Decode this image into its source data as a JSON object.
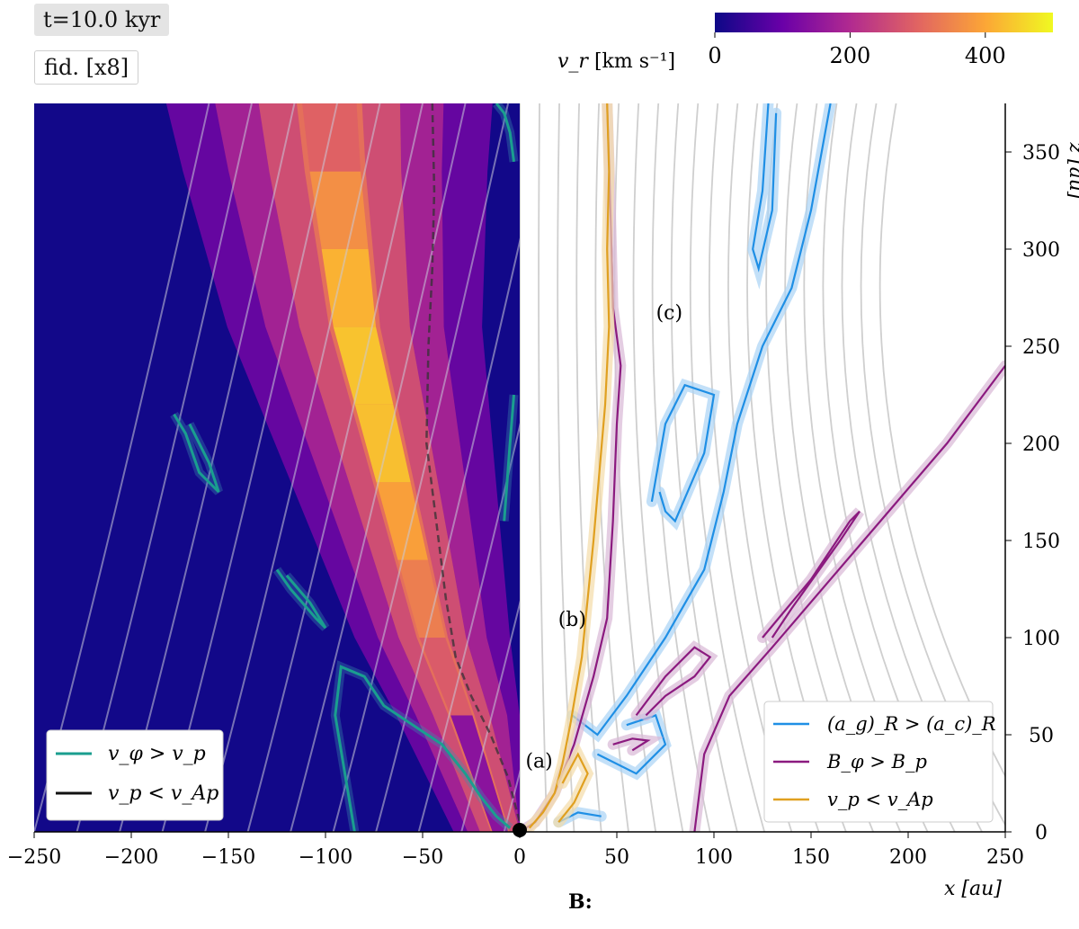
{
  "labels": {
    "time": "t=10.0 kyr",
    "run": "fid. [x8]",
    "field_caption": "B:"
  },
  "colorbar": {
    "quantity": "v_r",
    "unit": "[km s⁻¹]",
    "ticks": [
      0,
      200,
      400
    ],
    "range": [
      0,
      500
    ],
    "colormap": [
      "#0d0887",
      "#6a00a8",
      "#b12a90",
      "#e16462",
      "#fca636",
      "#f0f921"
    ]
  },
  "chart_data": {
    "type": "heatmap",
    "xlabel": "x [au]",
    "ylabel": "z [au]",
    "xlim": [
      -250,
      250
    ],
    "ylim": [
      0,
      375
    ],
    "xticks": [
      -250,
      -200,
      -150,
      -100,
      -50,
      0,
      50,
      100,
      150,
      200,
      250
    ],
    "yticks": [
      0,
      50,
      100,
      150,
      200,
      250,
      300,
      350
    ],
    "left_panel": {
      "field": "v_r",
      "background_value": 5,
      "outflow_band": [
        [
          -10,
          0,
          40
        ],
        [
          -30,
          60,
          250
        ],
        [
          -45,
          100,
          320
        ],
        [
          -55,
          140,
          360
        ],
        [
          -65,
          180,
          420
        ],
        [
          -75,
          220,
          440
        ],
        [
          -85,
          260,
          430
        ],
        [
          -90,
          300,
          400
        ],
        [
          -95,
          340,
          330
        ],
        [
          -98,
          375,
          260
        ]
      ],
      "legend": [
        {
          "label": "v_φ > v_p",
          "color": "#1a9e8f"
        },
        {
          "label": "v_p < v_Ap",
          "color": "#111111"
        }
      ],
      "contours": {
        "vphi_gt_vp": [
          [
            [
              -85,
              0
            ],
            [
              -90,
              30
            ],
            [
              -95,
              60
            ],
            [
              -92,
              85
            ],
            [
              -80,
              80
            ],
            [
              -70,
              65
            ],
            [
              -55,
              55
            ],
            [
              -40,
              45
            ],
            [
              -28,
              30
            ],
            [
              -20,
              18
            ],
            [
              -12,
              8
            ],
            [
              -5,
              2
            ]
          ],
          [
            [
              -178,
              215
            ],
            [
              -172,
              205
            ],
            [
              -165,
              185
            ],
            [
              -155,
              175
            ],
            [
              -160,
              190
            ],
            [
              -170,
              210
            ]
          ],
          [
            [
              -125,
              135
            ],
            [
              -118,
              125
            ],
            [
              -105,
              110
            ],
            [
              -100,
              105
            ],
            [
              -108,
              118
            ],
            [
              -120,
              132
            ]
          ],
          [
            [
              -12,
              375
            ],
            [
              -8,
              370
            ],
            [
              -5,
              360
            ],
            [
              -3,
              345
            ]
          ],
          [
            [
              -8,
              160
            ],
            [
              -5,
              200
            ],
            [
              -3,
              225
            ]
          ]
        ],
        "vp_lt_vap": [
          [
            [
              -45,
              375
            ],
            [
              -44,
              330
            ],
            [
              -45,
              290
            ],
            [
              -47,
              250
            ],
            [
              -48,
              200
            ],
            [
              -43,
              160
            ],
            [
              -38,
              120
            ],
            [
              -33,
              90
            ],
            [
              -25,
              70
            ],
            [
              -15,
              50
            ],
            [
              -6,
              28
            ],
            [
              0,
              5
            ]
          ]
        ]
      }
    },
    "right_panel": {
      "field": "B",
      "annotations": [
        {
          "text": "(a)",
          "x": 10,
          "z": 33
        },
        {
          "text": "(b)",
          "x": 27,
          "z": 106
        },
        {
          "text": "(c)",
          "x": 77,
          "z": 264
        }
      ],
      "legend": [
        {
          "label": "(a_g)_R > (a_c)_R",
          "color": "#1f8fe5"
        },
        {
          "label": "B_φ > B_p",
          "color": "#8b1a7f"
        },
        {
          "label": "v_p < v_Ap",
          "color": "#e0a020"
        }
      ],
      "contours": {
        "ag_gt_ac": [
          [
            [
              27,
              60
            ],
            [
              40,
              50
            ],
            [
              55,
              70
            ],
            [
              75,
              100
            ],
            [
              95,
              135
            ],
            [
              105,
              175
            ],
            [
              112,
              210
            ],
            [
              125,
              250
            ],
            [
              140,
              280
            ],
            [
              150,
              320
            ],
            [
              160,
              375
            ]
          ],
          [
            [
              40,
              40
            ],
            [
              60,
              30
            ],
            [
              75,
              45
            ],
            [
              70,
              60
            ],
            [
              55,
              55
            ]
          ],
          [
            [
              68,
              170
            ],
            [
              75,
              210
            ],
            [
              85,
              230
            ],
            [
              100,
              225
            ],
            [
              95,
              195
            ],
            [
              80,
              160
            ],
            [
              75,
              165
            ],
            [
              72,
              175
            ]
          ],
          [
            [
              128,
              375
            ],
            [
              125,
              330
            ],
            [
              120,
              300
            ],
            [
              123,
              290
            ],
            [
              130,
              320
            ],
            [
              132,
              370
            ]
          ],
          [
            [
              20,
              5
            ],
            [
              30,
              10
            ],
            [
              42,
              8
            ]
          ]
        ],
        "bphi_gt_bp": [
          [
            [
              0,
              0
            ],
            [
              8,
              5
            ],
            [
              18,
              20
            ],
            [
              28,
              45
            ],
            [
              38,
              80
            ],
            [
              45,
              110
            ],
            [
              48,
              160
            ],
            [
              50,
              210
            ],
            [
              52,
              240
            ],
            [
              48,
              270
            ],
            [
              47,
              310
            ],
            [
              46,
              345
            ],
            [
              45,
              375
            ]
          ],
          [
            [
              90,
              0
            ],
            [
              95,
              40
            ],
            [
              108,
              70
            ],
            [
              130,
              95
            ],
            [
              160,
              130
            ],
            [
              190,
              165
            ],
            [
              220,
              200
            ],
            [
              250,
              240
            ]
          ],
          [
            [
              60,
              60
            ],
            [
              75,
              80
            ],
            [
              90,
              95
            ],
            [
              98,
              90
            ],
            [
              90,
              80
            ],
            [
              75,
              70
            ],
            [
              65,
              60
            ]
          ],
          [
            [
              125,
              100
            ],
            [
              150,
              130
            ],
            [
              170,
              160
            ],
            [
              175,
              165
            ],
            [
              165,
              150
            ],
            [
              140,
              115
            ],
            [
              130,
              100
            ]
          ],
          [
            [
              48,
              45
            ],
            [
              58,
              48
            ],
            [
              66,
              47
            ],
            [
              58,
              42
            ]
          ]
        ],
        "vp_lt_vap": [
          [
            [
              5,
              2
            ],
            [
              12,
              10
            ],
            [
              18,
              20
            ],
            [
              22,
              35
            ],
            [
              26,
              55
            ],
            [
              32,
              90
            ],
            [
              38,
              150
            ],
            [
              44,
              220
            ],
            [
              46,
              260
            ],
            [
              45,
              300
            ],
            [
              46,
              340
            ],
            [
              45,
              375
            ]
          ],
          [
            [
              20,
              5
            ],
            [
              28,
              15
            ],
            [
              35,
              30
            ],
            [
              30,
              40
            ],
            [
              22,
              25
            ]
          ]
        ]
      }
    },
    "streamline_note": "gray streamlines on both halves"
  }
}
